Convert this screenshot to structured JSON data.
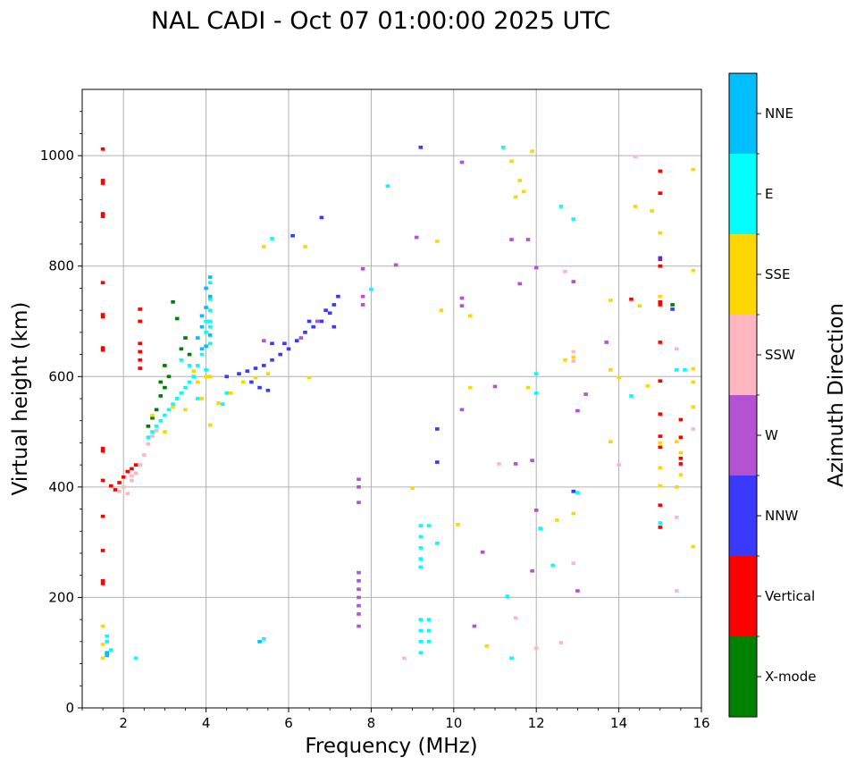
{
  "chart_data": {
    "type": "scatter",
    "title": "NAL CADI - Oct 07 01:00:00 2025 UTC",
    "xlabel": "Frequency (MHz)",
    "ylabel": "Virtual height (km)",
    "xlim": [
      1,
      16
    ],
    "ylim": [
      0,
      1120
    ],
    "xticks": [
      2,
      4,
      6,
      8,
      10,
      12,
      14,
      16
    ],
    "yticks": [
      0,
      200,
      400,
      600,
      800,
      1000
    ],
    "grid": true,
    "colorbar": {
      "label": "Azimuth Direction",
      "categories": [
        {
          "name": "X-mode",
          "color": "#008000"
        },
        {
          "name": "Vertical",
          "color": "#ff0000"
        },
        {
          "name": "NNW",
          "color": "#3a3aff"
        },
        {
          "name": "W",
          "color": "#b452d4"
        },
        {
          "name": "SSW",
          "color": "#ffb6c1"
        },
        {
          "name": "SSE",
          "color": "#ffd700"
        },
        {
          "name": "E",
          "color": "#00ffff"
        },
        {
          "name": "NNE",
          "color": "#00bfff"
        }
      ]
    },
    "series": [
      {
        "name": "Vertical",
        "color": "#ff0000",
        "points": [
          [
            1.5,
            1012
          ],
          [
            1.5,
            955
          ],
          [
            1.5,
            950
          ],
          [
            1.5,
            895
          ],
          [
            1.5,
            890
          ],
          [
            1.5,
            770
          ],
          [
            1.5,
            712
          ],
          [
            1.5,
            708
          ],
          [
            1.5,
            652
          ],
          [
            1.5,
            648
          ],
          [
            1.5,
            470
          ],
          [
            1.5,
            465
          ],
          [
            1.5,
            412
          ],
          [
            1.5,
            347
          ],
          [
            1.5,
            285
          ],
          [
            1.5,
            230
          ],
          [
            1.5,
            225
          ],
          [
            1.8,
            395
          ],
          [
            1.9,
            408
          ],
          [
            2.0,
            418
          ],
          [
            2.1,
            428
          ],
          [
            2.2,
            433
          ],
          [
            2.3,
            440
          ],
          [
            1.7,
            402
          ],
          [
            2.4,
            722
          ],
          [
            2.4,
            700
          ],
          [
            2.4,
            660
          ],
          [
            2.4,
            645
          ],
          [
            2.4,
            630
          ],
          [
            2.4,
            615
          ],
          [
            15.0,
            812
          ],
          [
            15.0,
            800
          ],
          [
            15.0,
            735
          ],
          [
            15.0,
            730
          ],
          [
            15.0,
            662
          ],
          [
            15.0,
            592
          ],
          [
            15.0,
            532
          ],
          [
            15.0,
            492
          ],
          [
            15.0,
            472
          ],
          [
            15.0,
            367
          ],
          [
            15.0,
            327
          ],
          [
            15.0,
            932
          ],
          [
            15.0,
            972
          ],
          [
            15.5,
            522
          ],
          [
            15.5,
            490
          ],
          [
            15.5,
            452
          ],
          [
            15.5,
            442
          ],
          [
            14.3,
            740
          ]
        ]
      },
      {
        "name": "X-mode",
        "color": "#008000",
        "points": [
          [
            2.7,
            525
          ],
          [
            2.8,
            540
          ],
          [
            2.9,
            565
          ],
          [
            3.0,
            580
          ],
          [
            3.1,
            600
          ],
          [
            2.6,
            510
          ],
          [
            3.2,
            735
          ],
          [
            3.3,
            705
          ],
          [
            3.4,
            650
          ],
          [
            3.0,
            620
          ],
          [
            2.9,
            590
          ],
          [
            3.5,
            670
          ],
          [
            3.6,
            640
          ],
          [
            15.3,
            730
          ]
        ]
      },
      {
        "name": "NNW",
        "color": "#3a3aff",
        "points": [
          [
            4.5,
            600
          ],
          [
            4.8,
            605
          ],
          [
            5.0,
            610
          ],
          [
            5.2,
            615
          ],
          [
            5.4,
            620
          ],
          [
            5.6,
            630
          ],
          [
            5.8,
            640
          ],
          [
            6.0,
            650
          ],
          [
            6.2,
            665
          ],
          [
            6.4,
            680
          ],
          [
            6.6,
            690
          ],
          [
            6.8,
            700
          ],
          [
            7.0,
            715
          ],
          [
            7.1,
            730
          ],
          [
            7.2,
            745
          ],
          [
            5.1,
            590
          ],
          [
            5.3,
            580
          ],
          [
            5.5,
            575
          ],
          [
            5.9,
            660
          ],
          [
            6.5,
            700
          ],
          [
            6.9,
            720
          ],
          [
            5.6,
            660
          ],
          [
            6.1,
            855
          ],
          [
            6.8,
            888
          ],
          [
            9.2,
            1015
          ],
          [
            9.6,
            505
          ],
          [
            9.6,
            445
          ],
          [
            15.3,
            722
          ],
          [
            15.0,
            815
          ],
          [
            12.9,
            392
          ],
          [
            7.1,
            690
          ]
        ]
      },
      {
        "name": "W",
        "color": "#b452d4",
        "points": [
          [
            7.7,
            414
          ],
          [
            7.7,
            400
          ],
          [
            7.7,
            372
          ],
          [
            7.7,
            245
          ],
          [
            7.7,
            230
          ],
          [
            7.7,
            215
          ],
          [
            7.7,
            200
          ],
          [
            7.7,
            185
          ],
          [
            7.7,
            170
          ],
          [
            7.7,
            148
          ],
          [
            7.8,
            795
          ],
          [
            7.8,
            745
          ],
          [
            7.8,
            730
          ],
          [
            8.6,
            802
          ],
          [
            9.1,
            852
          ],
          [
            10.2,
            988
          ],
          [
            11.4,
            848
          ],
          [
            11.8,
            848
          ],
          [
            10.2,
            742
          ],
          [
            10.2,
            728
          ],
          [
            10.2,
            540
          ],
          [
            10.7,
            282
          ],
          [
            10.5,
            148
          ],
          [
            11.5,
            442
          ],
          [
            11.9,
            448
          ],
          [
            12.0,
            358
          ],
          [
            11.9,
            248
          ],
          [
            12.9,
            772
          ],
          [
            13.2,
            568
          ],
          [
            13.0,
            538
          ],
          [
            13.7,
            662
          ],
          [
            13.0,
            212
          ],
          [
            11.0,
            582
          ],
          [
            11.6,
            768
          ],
          [
            12.0,
            797
          ],
          [
            6.7,
            700
          ],
          [
            6.3,
            670
          ],
          [
            5.4,
            665
          ]
        ]
      },
      {
        "name": "SSW",
        "color": "#ffb6c1",
        "points": [
          [
            1.9,
            392
          ],
          [
            2.0,
            400
          ],
          [
            2.2,
            412
          ],
          [
            2.3,
            425
          ],
          [
            2.4,
            440
          ],
          [
            2.5,
            458
          ],
          [
            2.6,
            478
          ],
          [
            2.7,
            492
          ],
          [
            2.8,
            502
          ],
          [
            2.1,
            388
          ],
          [
            2.2,
            420
          ],
          [
            12.7,
            790
          ],
          [
            12.9,
            645
          ],
          [
            12.9,
            628
          ],
          [
            12.6,
            118
          ],
          [
            12.9,
            262
          ],
          [
            14.0,
            440
          ],
          [
            15.4,
            650
          ],
          [
            15.4,
            345
          ],
          [
            15.4,
            212
          ],
          [
            8.8,
            90
          ],
          [
            11.1,
            442
          ],
          [
            11.5,
            163
          ],
          [
            12.0,
            108
          ],
          [
            14.4,
            998
          ],
          [
            15.8,
            505
          ]
        ]
      },
      {
        "name": "SSE",
        "color": "#ffd700",
        "points": [
          [
            1.5,
            148
          ],
          [
            1.5,
            115
          ],
          [
            1.6,
            100
          ],
          [
            1.5,
            90
          ],
          [
            4.1,
            600
          ],
          [
            4.1,
            512
          ],
          [
            4.3,
            552
          ],
          [
            4.6,
            570
          ],
          [
            4.9,
            590
          ],
          [
            5.2,
            598
          ],
          [
            5.5,
            605
          ],
          [
            6.5,
            598
          ],
          [
            6.4,
            835
          ],
          [
            5.4,
            835
          ],
          [
            4.0,
            600
          ],
          [
            3.5,
            540
          ],
          [
            3.8,
            590
          ],
          [
            3.3,
            560
          ],
          [
            3.0,
            500
          ],
          [
            2.7,
            530
          ],
          [
            3.9,
            560
          ],
          [
            3.7,
            610
          ],
          [
            3.2,
            545
          ],
          [
            11.4,
            990
          ],
          [
            11.6,
            955
          ],
          [
            11.7,
            935
          ],
          [
            11.5,
            925
          ],
          [
            11.9,
            1008
          ],
          [
            10.4,
            710
          ],
          [
            10.4,
            580
          ],
          [
            11.8,
            580
          ],
          [
            9.0,
            398
          ],
          [
            9.7,
            720
          ],
          [
            9.6,
            845
          ],
          [
            10.1,
            332
          ],
          [
            12.5,
            340
          ],
          [
            12.9,
            352
          ],
          [
            12.9,
            635
          ],
          [
            12.7,
            630
          ],
          [
            13.8,
            738
          ],
          [
            13.8,
            612
          ],
          [
            13.8,
            482
          ],
          [
            14.0,
            598
          ],
          [
            14.4,
            908
          ],
          [
            14.8,
            900
          ],
          [
            15.0,
            860
          ],
          [
            15.0,
            745
          ],
          [
            15.0,
            480
          ],
          [
            15.0,
            435
          ],
          [
            15.0,
            402
          ],
          [
            14.7,
            583
          ],
          [
            15.8,
            975
          ],
          [
            15.8,
            792
          ],
          [
            15.8,
            614
          ],
          [
            15.8,
            590
          ],
          [
            15.8,
            545
          ],
          [
            15.8,
            292
          ],
          [
            15.4,
            482
          ],
          [
            15.4,
            400
          ],
          [
            15.5,
            422
          ],
          [
            15.5,
            462
          ],
          [
            10.8,
            112
          ],
          [
            14.5,
            728
          ]
        ]
      },
      {
        "name": "E",
        "color": "#00ffff",
        "points": [
          [
            4.1,
            770
          ],
          [
            4.1,
            740
          ],
          [
            4.1,
            720
          ],
          [
            4.1,
            700
          ],
          [
            4.1,
            690
          ],
          [
            4.1,
            660
          ],
          [
            4.0,
            700
          ],
          [
            4.0,
            680
          ],
          [
            3.9,
            640
          ],
          [
            3.8,
            620
          ],
          [
            3.7,
            600
          ],
          [
            3.6,
            590
          ],
          [
            3.5,
            580
          ],
          [
            3.4,
            570
          ],
          [
            3.3,
            560
          ],
          [
            3.2,
            550
          ],
          [
            3.1,
            540
          ],
          [
            3.0,
            530
          ],
          [
            2.9,
            520
          ],
          [
            2.8,
            510
          ],
          [
            2.7,
            500
          ],
          [
            2.6,
            490
          ],
          [
            3.8,
            560
          ],
          [
            3.6,
            620
          ],
          [
            3.4,
            630
          ],
          [
            4.4,
            550
          ],
          [
            4.5,
            570
          ],
          [
            4.0,
            612
          ],
          [
            1.6,
            130
          ],
          [
            1.6,
            120
          ],
          [
            1.7,
            105
          ],
          [
            2.3,
            90
          ],
          [
            5.4,
            125
          ],
          [
            5.6,
            850
          ],
          [
            8.0,
            758
          ],
          [
            9.2,
            330
          ],
          [
            9.2,
            310
          ],
          [
            9.2,
            290
          ],
          [
            9.2,
            270
          ],
          [
            9.2,
            255
          ],
          [
            9.4,
            330
          ],
          [
            9.6,
            298
          ],
          [
            9.2,
            160
          ],
          [
            9.2,
            140
          ],
          [
            9.2,
            120
          ],
          [
            9.2,
            100
          ],
          [
            9.4,
            160
          ],
          [
            9.4,
            140
          ],
          [
            9.4,
            120
          ],
          [
            12.0,
            605
          ],
          [
            12.0,
            570
          ],
          [
            12.1,
            325
          ],
          [
            12.4,
            258
          ],
          [
            12.6,
            908
          ],
          [
            12.9,
            885
          ],
          [
            13.0,
            390
          ],
          [
            14.3,
            565
          ],
          [
            15.0,
            335
          ],
          [
            15.4,
            612
          ],
          [
            15.6,
            612
          ],
          [
            11.2,
            1015
          ],
          [
            11.4,
            90
          ],
          [
            11.3,
            202
          ],
          [
            8.4,
            945
          ]
        ]
      },
      {
        "name": "NNE",
        "color": "#00bfff",
        "points": [
          [
            4.1,
            780
          ],
          [
            4.0,
            760
          ],
          [
            4.1,
            745
          ],
          [
            4.0,
            725
          ],
          [
            3.9,
            710
          ],
          [
            3.9,
            690
          ],
          [
            3.8,
            670
          ],
          [
            3.9,
            650
          ],
          [
            4.1,
            675
          ],
          [
            4.0,
            655
          ],
          [
            1.6,
            100
          ],
          [
            1.6,
            95
          ],
          [
            5.3,
            120
          ]
        ]
      }
    ]
  }
}
